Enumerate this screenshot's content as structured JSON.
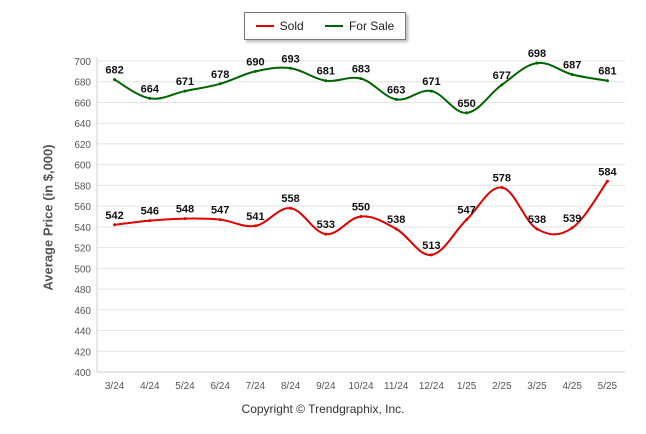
{
  "chart_data": {
    "type": "line",
    "categories": [
      "3/24",
      "4/24",
      "5/24",
      "6/24",
      "7/24",
      "8/24",
      "9/24",
      "10/24",
      "11/24",
      "12/24",
      "1/25",
      "2/25",
      "3/25",
      "4/25",
      "5/25"
    ],
    "series": [
      {
        "name": "Sold",
        "color": "#e00000",
        "values": [
          542,
          546,
          548,
          547,
          541,
          558,
          533,
          550,
          538,
          513,
          547,
          578,
          538,
          539,
          584
        ]
      },
      {
        "name": "For Sale",
        "color": "#006400",
        "values": [
          682,
          664,
          671,
          678,
          690,
          693,
          681,
          683,
          663,
          671,
          650,
          677,
          698,
          687,
          681
        ]
      }
    ],
    "ylabel": "Average Price (in $,000)",
    "ylim": [
      400,
      700
    ],
    "yticks": [
      400,
      420,
      440,
      460,
      480,
      500,
      520,
      540,
      560,
      580,
      600,
      620,
      640,
      660,
      680,
      700
    ],
    "grid": true,
    "legend_position": "top-center"
  },
  "footer": {
    "copyright": "Copyright © Trendgraphix, Inc."
  }
}
